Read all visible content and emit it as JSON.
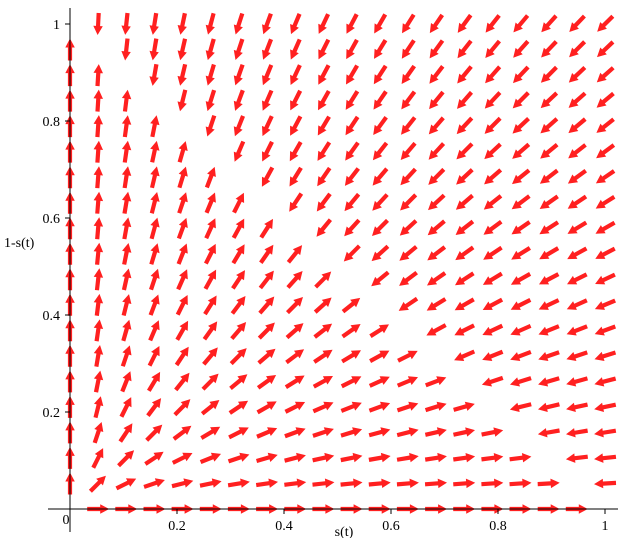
{
  "chart_data": {
    "type": "vector_field",
    "xlabel": "s(t)",
    "ylabel": "1-s(t)",
    "xlim": [
      0,
      1
    ],
    "ylim": [
      0,
      1
    ],
    "x_ticks": [
      0.2,
      0.4,
      0.6,
      0.8,
      1
    ],
    "y_ticks": [
      0.2,
      0.4,
      0.6,
      0.8,
      1
    ],
    "x_tick_labels": [
      "0.2",
      "0.4",
      "0.6",
      "0.8",
      "1"
    ],
    "y_tick_labels": [
      "0.2",
      "0.4",
      "0.6",
      "0.8",
      "1"
    ],
    "origin_label": "0",
    "grid": false,
    "arrow_color": "#ff2020",
    "grid_points": 20,
    "field": {
      "dx": "x*(1-x-y)",
      "dy": "y*(1-x-y)",
      "normalized_arrow_length": true
    }
  }
}
